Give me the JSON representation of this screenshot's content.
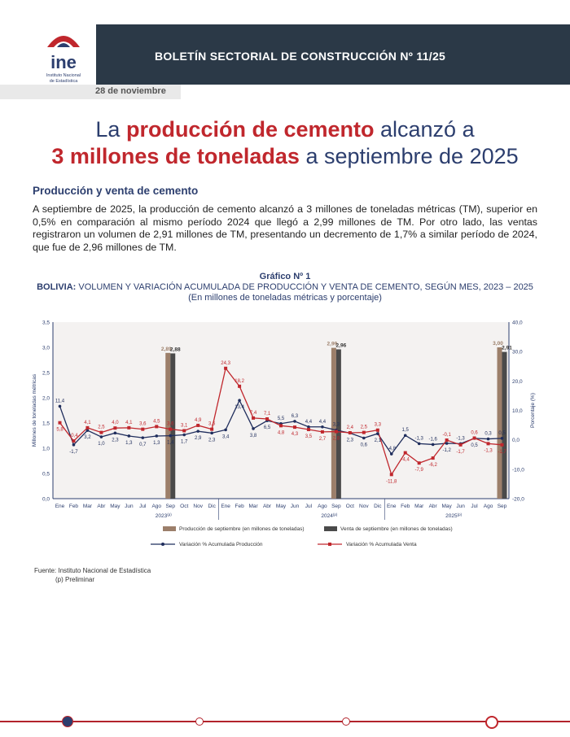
{
  "header": {
    "title": "BOLETÍN SECTORIAL DE CONSTRUCCIÓN Nº 11/25",
    "logo_text": "ine",
    "logo_sub1": "Instituto Nacional",
    "logo_sub2": "de Estadística"
  },
  "date": "28 de noviembre",
  "headline": {
    "l1_a": "La ",
    "l1_b": "producción de cemento",
    "l1_c": " alcanzó a",
    "l2_a": "3 millones de toneladas",
    "l2_b": " a septiembre de 2025"
  },
  "section_title": "Producción y venta de cemento",
  "paragraph": "A septiembre de 2025, la producción de cemento alcanzó a 3 millones de toneladas métricas (TM), superior en 0,5% en comparación al mismo período 2024 que llegó a 2,99 millones de TM. Por otro lado, las ventas registraron un volumen de 2,91 millones de TM, presentando un decremento de 1,7% a similar período de 2024, que fue de 2,96 millones de TM.",
  "chart_heading": {
    "number": "Gráfico Nº 1",
    "country": "BOLIVIA:",
    "title": " VOLUMEN Y VARIACIÓN ACUMULADA DE PRODUCCIÓN Y VENTA DE CEMENTO, SEGÚN MES, 2023 – 2025",
    "units": "(En millones de toneladas métricas y porcentaje)"
  },
  "chart_data": {
    "type": "bar+line",
    "months": [
      "Ene",
      "Feb",
      "Mar",
      "Abr",
      "May",
      "Jun",
      "Jul",
      "Ago",
      "Sep",
      "Oct",
      "Nov",
      "Dic",
      "Ene",
      "Feb",
      "Mar",
      "Abr",
      "May",
      "Jun",
      "Jul",
      "Ago",
      "Sep",
      "Oct",
      "Nov",
      "Dic",
      "Ene",
      "Feb",
      "Mar",
      "Abr",
      "May",
      "Jun",
      "Jul",
      "Ago",
      "Sep"
    ],
    "years": [
      {
        "label": "2023",
        "sup": "(p)"
      },
      {
        "label": "2024",
        "sup": "(p)"
      },
      {
        "label": "2025",
        "sup": "(p)"
      }
    ],
    "ylabel_left": "Millones de toneladas métricas",
    "ylabel_right": "Porcentaje (%)",
    "left_ticks": [
      "0,0",
      "0,5",
      "1,0",
      "1,5",
      "2,0",
      "2,5",
      "3,0",
      "3,5"
    ],
    "right_ticks": [
      "-20,0",
      "-10,0",
      "0,0",
      "10,0",
      "20,0",
      "30,0",
      "40,0"
    ],
    "ylim_left": [
      0,
      3.5
    ],
    "ylim_right": [
      -20,
      40
    ],
    "bars": {
      "produccion": {
        "name": "Producción de septiembre (en millones de toneladas)",
        "color": "#9c7f6a",
        "values": [
          {
            "month": 8,
            "value": 2.89,
            "label": "2,89"
          },
          {
            "month": 20,
            "value": 2.99,
            "label": "2,99"
          },
          {
            "month": 32,
            "value": 3.0,
            "label": "3,00"
          }
        ]
      },
      "venta": {
        "name": "Venta de septiembre (en millones de toneladas)",
        "color": "#4a4a4a",
        "values": [
          {
            "month": 8,
            "value": 2.88,
            "label": "2,88"
          },
          {
            "month": 20,
            "value": 2.96,
            "label": "2,96"
          },
          {
            "month": 32,
            "value": 2.91,
            "label": "2,91"
          }
        ]
      }
    },
    "series": [
      {
        "name": "Variación % Acumulada Producción",
        "color": "#1f2d5c",
        "values": [
          11.4,
          -1.7,
          3.2,
          1.0,
          2.3,
          1.3,
          0.7,
          1.3,
          1.4,
          1.7,
          2.9,
          2.3,
          3.4,
          13.4,
          3.8,
          6.5,
          5.5,
          6.3,
          4.4,
          4.4,
          3.3,
          2.3,
          0.6,
          2.1,
          -4.8,
          1.5,
          -1.3,
          -1.6,
          -1.2,
          -1.3,
          0.5,
          0.3,
          0.5
        ],
        "labels": [
          "11,4",
          "-1,7",
          "3,2",
          "1,0",
          "2,3",
          "1,3",
          "0,7",
          "1,3",
          "1,4",
          "1,7",
          "2,9",
          "2,3",
          "3,4",
          "13,4",
          "3,8",
          "6,5",
          "5,5",
          "6,3",
          "4,4",
          "4,4",
          "3,3",
          "2,3",
          "0,6",
          "2,1",
          "-4,8",
          "1,5",
          "-1,3",
          "-1,6",
          "-1,2",
          "-1,3",
          "0,5",
          "0,3",
          "0,5"
        ]
      },
      {
        "name": "Variación % Acumulada Venta",
        "color": "#c0272d",
        "values": [
          5.8,
          -0.4,
          4.1,
          2.5,
          4.0,
          4.1,
          3.6,
          4.5,
          3.6,
          3.1,
          4.9,
          3.6,
          24.3,
          18.2,
          7.4,
          7.1,
          4.8,
          4.3,
          3.5,
          2.7,
          2.8,
          2.4,
          2.5,
          3.3,
          -11.8,
          -4.4,
          -7.9,
          -6.2,
          -0.1,
          -1.7,
          0.6,
          -1.3,
          -1.7
        ],
        "labels": [
          "5,8",
          "-0,4",
          "4,1",
          "2,5",
          "4,0",
          "4,1",
          "3,6",
          "4,5",
          "3,6",
          "3,1",
          "4,9",
          "3,6",
          "24,3",
          "18,2",
          "7,4",
          "7,1",
          "4,8",
          "4,3",
          "3,5",
          "2,7",
          "2,8",
          "2,4",
          "2,5",
          "3,3",
          "-11,8",
          "-4,4",
          "-7,9",
          "-6,2",
          "-0,1",
          "-1,7",
          "0,6",
          "-1,3",
          "-1,7"
        ]
      }
    ]
  },
  "footnotes": {
    "source": "Fuente: Instituto Nacional de Estadística",
    "prelim": "(p) Preliminar"
  },
  "colors": {
    "header_bg": "#2b3947",
    "accent_red": "#c0272d",
    "navy": "#2c3e6e"
  }
}
